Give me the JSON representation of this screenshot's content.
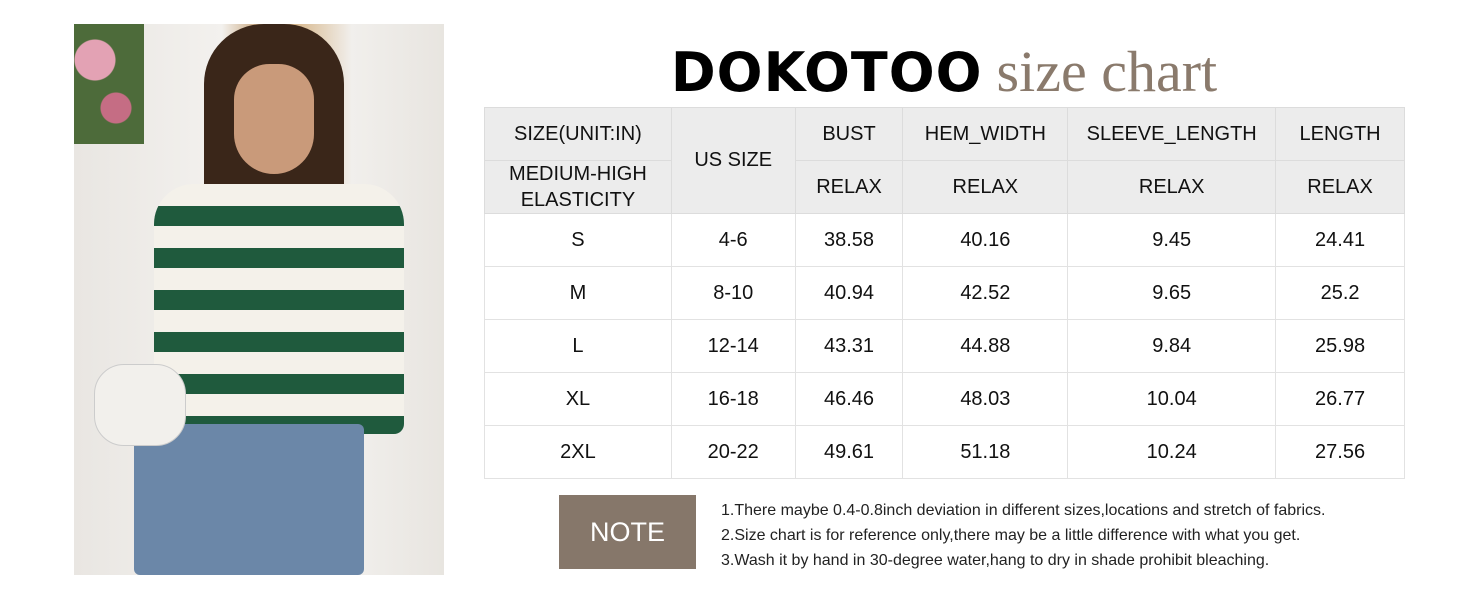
{
  "title": {
    "brand": "DOKOTOO",
    "subtitle": "size chart"
  },
  "header": {
    "size_unit": "SIZE(UNIT:IN)",
    "elasticity": "MEDIUM-HIGH ELASTICITY",
    "us_size": "US SIZE",
    "columns": [
      "BUST",
      "HEM_WIDTH",
      "SLEEVE_LENGTH",
      "LENGTH"
    ],
    "fit": [
      "RELAX",
      "RELAX",
      "RELAX",
      "RELAX"
    ]
  },
  "rows": [
    [
      "S",
      "4-6",
      "38.58",
      "40.16",
      "9.45",
      "24.41"
    ],
    [
      "M",
      "8-10",
      "40.94",
      "42.52",
      "9.65",
      "25.2"
    ],
    [
      "L",
      "12-14",
      "43.31",
      "44.88",
      "9.84",
      "25.98"
    ],
    [
      "XL",
      "16-18",
      "46.46",
      "48.03",
      "10.04",
      "26.77"
    ],
    [
      "2XL",
      "20-22",
      "49.61",
      "51.18",
      "10.24",
      "27.56"
    ]
  ],
  "note": {
    "label": "NOTE",
    "lines": [
      "1.There maybe 0.4-0.8inch deviation in different sizes,locations and stretch of fabrics.",
      "2.Size chart is for reference only,there may be a little difference with what you get.",
      "3.Wash it by hand in 30-degree water,hang to dry in shade prohibit bleaching."
    ]
  },
  "colors": {
    "accent": "#86776a",
    "header_bg": "#ececec"
  }
}
